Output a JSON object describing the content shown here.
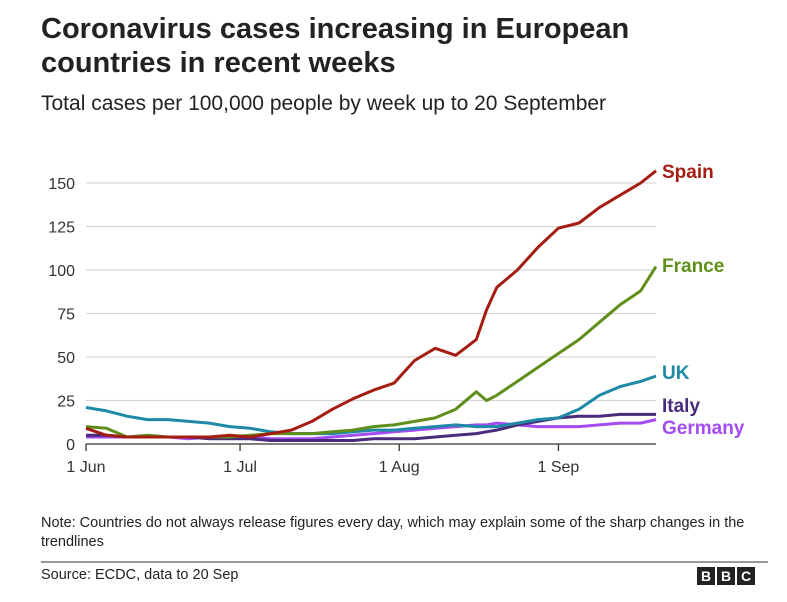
{
  "header": {
    "title": "Coronavirus cases increasing in European countries in recent weeks",
    "subtitle": "Total cases per 100,000 people by week up to 20 September"
  },
  "footer": {
    "note": "Note: Countries do not always release figures every day, which may explain some of the sharp changes in the trendlines",
    "source": "Source: ECDC, data to 20 Sep",
    "logo_letters": [
      "B",
      "B",
      "C"
    ]
  },
  "chart_data": {
    "type": "line",
    "title": "Coronavirus cases increasing in European countries in recent weeks",
    "subtitle": "Total cases per 100,000 people by week up to 20 September",
    "xlabel": "",
    "ylabel": "",
    "x_unit": "days since 1 Jun",
    "x": [
      0,
      4,
      8,
      12,
      16,
      20,
      24,
      28,
      32,
      36,
      40,
      44,
      48,
      52,
      56,
      60,
      64,
      68,
      72,
      76,
      78,
      80,
      84,
      88,
      92,
      96,
      100,
      104,
      108,
      111
    ],
    "xticks": [
      {
        "value": 0,
        "label": "1 Jun"
      },
      {
        "value": 30,
        "label": "1 Jul"
      },
      {
        "value": 61,
        "label": "1 Aug"
      },
      {
        "value": 92,
        "label": "1 Sep"
      }
    ],
    "xlim": [
      0,
      111
    ],
    "ylim": [
      0,
      150
    ],
    "yticks": [
      0,
      25,
      50,
      75,
      100,
      125,
      150
    ],
    "grid": true,
    "legend": "direct-labels-right",
    "series": [
      {
        "name": "Spain",
        "color": "#a51d12",
        "values": [
          9,
          5,
          4,
          4,
          4,
          4,
          4,
          5,
          4,
          6,
          8,
          13,
          20,
          26,
          31,
          35,
          48,
          55,
          51,
          60,
          77,
          90,
          100,
          113,
          124,
          127,
          136,
          143,
          150,
          157
        ]
      },
      {
        "name": "France",
        "color": "#5f8f1a",
        "values": [
          10,
          9,
          4,
          5,
          4,
          4,
          4,
          4,
          5,
          6,
          6,
          6,
          7,
          8,
          10,
          11,
          13,
          15,
          20,
          30,
          25,
          28,
          36,
          44,
          52,
          60,
          70,
          80,
          88,
          102
        ]
      },
      {
        "name": "UK",
        "color": "#1e8aa6",
        "values": [
          21,
          19,
          16,
          14,
          14,
          13,
          12,
          10,
          9,
          7,
          6,
          6,
          6,
          7,
          8,
          8,
          9,
          10,
          11,
          10,
          10,
          10,
          12,
          14,
          15,
          20,
          28,
          33,
          36,
          39
        ]
      },
      {
        "name": "Italy",
        "color": "#4a2a7a",
        "values": [
          5,
          5,
          4,
          4,
          4,
          4,
          3,
          3,
          3,
          2,
          2,
          2,
          2,
          2,
          3,
          3,
          3,
          4,
          5,
          6,
          7,
          8,
          11,
          13,
          15,
          16,
          16,
          17,
          17,
          17
        ]
      },
      {
        "name": "Germany",
        "color": "#a44cf2",
        "values": [
          4,
          4,
          4,
          4,
          4,
          3,
          4,
          4,
          4,
          3,
          3,
          3,
          4,
          5,
          6,
          7,
          8,
          9,
          10,
          11,
          11,
          12,
          11,
          10,
          10,
          10,
          11,
          12,
          12,
          14
        ]
      }
    ]
  }
}
